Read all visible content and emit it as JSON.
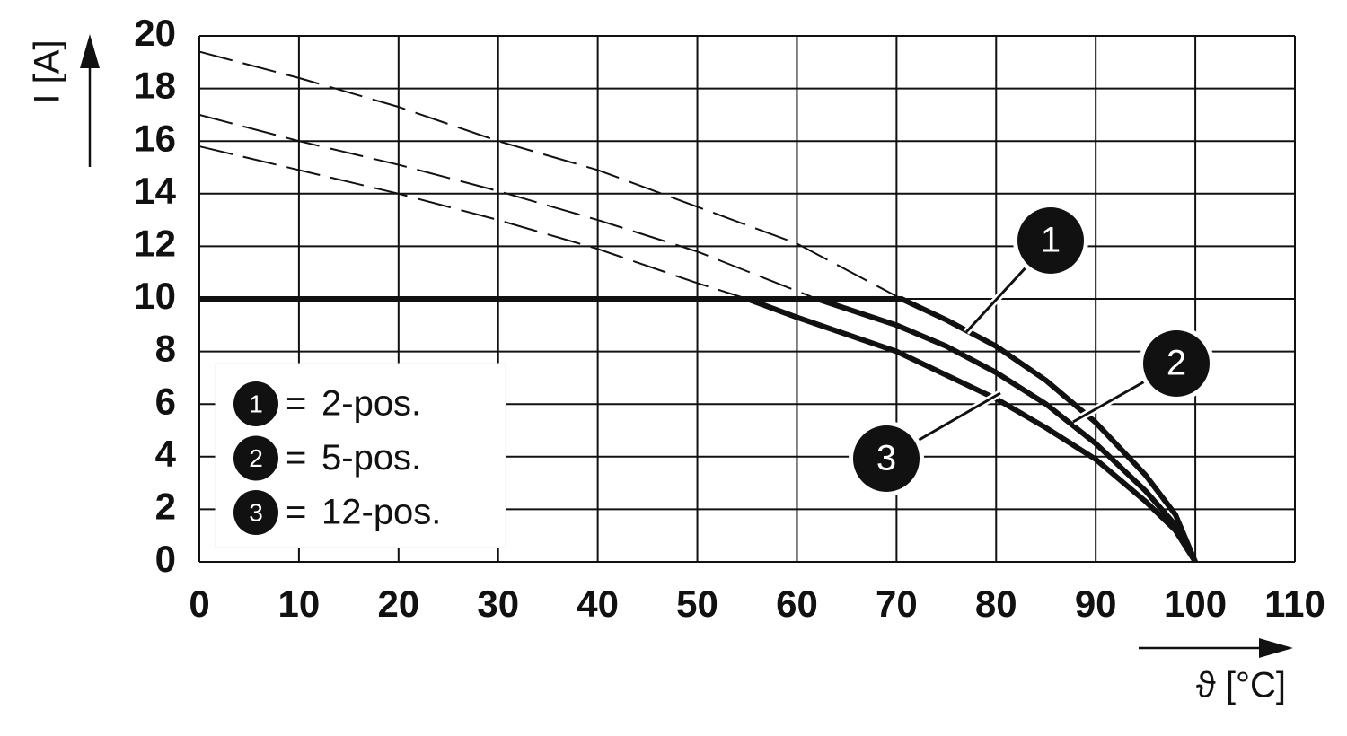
{
  "chart_data": {
    "type": "line",
    "x_label": "ϑ [°C]",
    "y_label": "I [A]",
    "xlim": [
      0,
      110
    ],
    "ylim": [
      0,
      20
    ],
    "xticks": [
      0,
      10,
      20,
      30,
      40,
      50,
      60,
      70,
      80,
      90,
      100,
      110
    ],
    "yticks": [
      0,
      2,
      4,
      6,
      8,
      10,
      12,
      14,
      16,
      18,
      20
    ],
    "grid": true,
    "legend": "lower left",
    "legend_equals": "=",
    "series": [
      {
        "key": "1",
        "name": "2-pos.",
        "color": "#111111",
        "x": [
          0,
          70.5,
          75,
          80,
          85,
          90,
          95,
          98,
          100
        ],
        "values": [
          10,
          10,
          9.2,
          8.2,
          6.9,
          5.3,
          3.3,
          1.8,
          0
        ],
        "extrapolated": {
          "x": [
            0,
            10,
            20,
            30,
            40,
            50,
            60,
            70.5
          ],
          "values": [
            19.4,
            18.4,
            17.3,
            16.0,
            14.9,
            13.5,
            12.1,
            10
          ]
        }
      },
      {
        "key": "2",
        "name": "5-pos.",
        "color": "#111111",
        "x": [
          0,
          62,
          70,
          75,
          80,
          85,
          90,
          95,
          98,
          100
        ],
        "values": [
          10,
          10,
          9.0,
          8.2,
          7.2,
          6.0,
          4.5,
          2.7,
          1.4,
          0
        ],
        "extrapolated": {
          "x": [
            0,
            10,
            20,
            30,
            40,
            50,
            62
          ],
          "values": [
            17.0,
            16.0,
            15.1,
            14.1,
            13.0,
            11.8,
            10
          ]
        }
      },
      {
        "key": "3",
        "name": "12-pos.",
        "color": "#111111",
        "x": [
          0,
          55,
          60,
          70,
          80,
          85,
          90,
          95,
          98,
          100
        ],
        "values": [
          10,
          10,
          9.3,
          8.0,
          6.2,
          5.1,
          3.9,
          2.3,
          1.2,
          0
        ],
        "extrapolated": {
          "x": [
            0,
            10,
            20,
            30,
            40,
            50,
            55
          ],
          "values": [
            15.8,
            14.9,
            14.0,
            13.0,
            11.9,
            10.6,
            10
          ]
        }
      }
    ]
  }
}
